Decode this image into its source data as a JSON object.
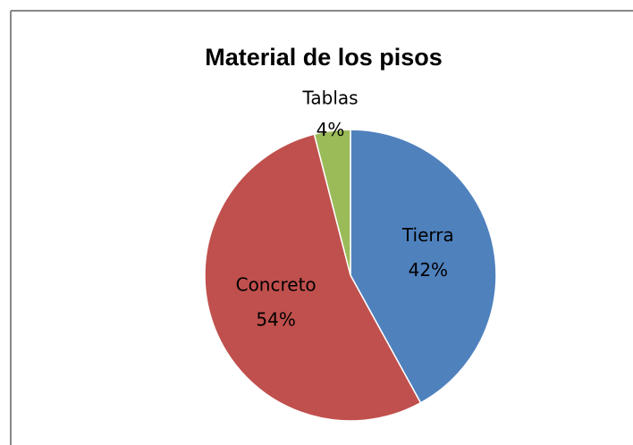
{
  "chart_data": {
    "type": "pie",
    "title": "Material de los pisos",
    "categories": [
      "Tierra",
      "Concreto",
      "Tablas"
    ],
    "values": [
      42,
      54,
      4
    ],
    "value_labels": [
      "42%",
      "54%",
      "4%"
    ],
    "colors": [
      "#4f81bd",
      "#c0504d",
      "#9bbb59"
    ]
  }
}
